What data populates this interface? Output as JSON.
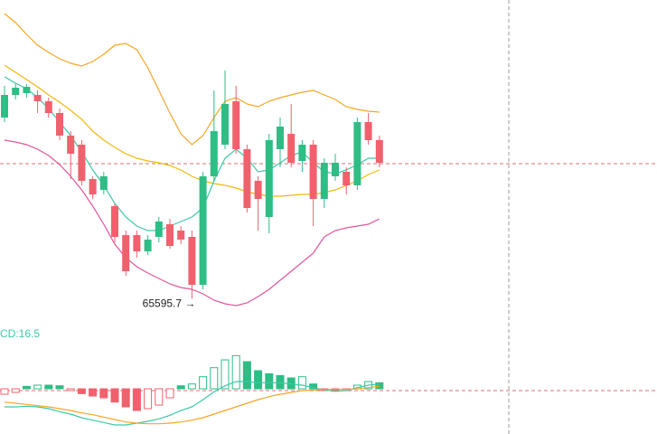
{
  "chart_data": [
    {
      "type": "candlestick",
      "ylim": [
        65400,
        68240
      ],
      "open": [
        67200,
        67400,
        67416,
        67400,
        67344,
        67240,
        67040,
        66960,
        66656,
        66560,
        66416,
        66160,
        66160,
        66016,
        66144,
        66256,
        66200,
        66144,
        65720,
        66680,
        66960,
        67344,
        66920,
        66640,
        66320,
        66920,
        67056,
        66816,
        66960,
        66480,
        66680,
        66720,
        66600,
        67160,
        67000
      ],
      "high": [
        67480,
        67504,
        67496,
        67440,
        67376,
        67280,
        67080,
        67000,
        66680,
        66720,
        66440,
        66200,
        66200,
        66160,
        66320,
        66304,
        66240,
        66200,
        66720,
        67440,
        67616,
        67480,
        66960,
        66680,
        67056,
        67200,
        67320,
        67000,
        67000,
        66840,
        66880,
        66760,
        67200,
        67240,
        67040
      ],
      "low": [
        67160,
        67360,
        67376,
        67240,
        67200,
        67000,
        66656,
        66600,
        66480,
        66520,
        66096,
        65800,
        65960,
        65984,
        66096,
        66040,
        66080,
        65595.7,
        65680,
        66640,
        66920,
        66880,
        66360,
        66200,
        66176,
        66760,
        66760,
        66720,
        66240,
        66400,
        66640,
        66520,
        66560,
        66960,
        66760
      ],
      "close": [
        67400,
        67464,
        67472,
        67344,
        67240,
        67040,
        66880,
        66640,
        66520,
        66680,
        66144,
        65840,
        66016,
        66120,
        66280,
        66064,
        66120,
        65720,
        66680,
        67080,
        67320,
        66920,
        66400,
        66480,
        67000,
        67120,
        66800,
        66960,
        66480,
        66800,
        66800,
        66600,
        67160,
        67000,
        66800
      ],
      "up_color": "#2ebd85",
      "down_color": "#f0616d",
      "annotation": "65595.7 →",
      "lines": [
        {
          "color": "#f5a623",
          "values": [
            68120,
            68040,
            67936,
            67840,
            67776,
            67720,
            67680,
            67656,
            67696,
            67760,
            67840,
            67856,
            67800,
            67640,
            67440,
            67240,
            67056,
            66960,
            67040,
            67200,
            67344,
            67376,
            67320,
            67296,
            67344,
            67376,
            67400,
            67424,
            67440,
            67400,
            67360,
            67296,
            67272,
            67256,
            67248
          ]
        },
        {
          "color": "#f0b90b",
          "values": [
            67664,
            67600,
            67536,
            67472,
            67400,
            67336,
            67264,
            67184,
            67080,
            67000,
            66936,
            66880,
            66840,
            66816,
            66800,
            66776,
            66736,
            66680,
            66640,
            66616,
            66600,
            66576,
            66544,
            66520,
            66504,
            66504,
            66512,
            66520,
            66520,
            66536,
            66560,
            66600,
            66640,
            66696,
            66736
          ]
        },
        {
          "color": "#3cc8a8",
          "values": [
            67560,
            67504,
            67456,
            67376,
            67280,
            67160,
            67040,
            66896,
            66736,
            66600,
            66440,
            66320,
            66240,
            66200,
            66200,
            66240,
            66280,
            66320,
            66400,
            66640,
            66840,
            66920,
            66840,
            66720,
            66736,
            66800,
            66864,
            66896,
            66800,
            66720,
            66704,
            66736,
            66784,
            66840,
            66840
          ]
        },
        {
          "color": "#e0559a",
          "values": [
            67000,
            66984,
            66960,
            66920,
            66864,
            66784,
            66680,
            66560,
            66416,
            66256,
            66080,
            65960,
            65880,
            65824,
            65776,
            65728,
            65696,
            65680,
            65640,
            65584,
            65552,
            65536,
            65560,
            65616,
            65680,
            65760,
            65840,
            65920,
            66000,
            66144,
            66200,
            66224,
            66240,
            66256,
            66304
          ]
        }
      ]
    },
    {
      "type": "macd",
      "title": "CD:16.5",
      "ylim": [
        -75,
        97.5
      ],
      "up_color": "#2ebd85",
      "down_color": "#f0616d",
      "values": [
        -9,
        -6,
        4,
        6,
        6,
        5,
        -3,
        -8,
        -12,
        -15,
        -22,
        -30,
        -36,
        -33,
        -27,
        -15,
        5,
        8,
        20,
        35,
        48,
        55,
        45,
        30,
        25,
        22,
        18,
        20,
        8,
        -3,
        -4,
        -3,
        6,
        12,
        10
      ],
      "lines": [
        {
          "color": "#3cc8a8",
          "values": [
            -30,
            -30,
            -29,
            -30,
            -33,
            -38,
            -42,
            -48,
            -52,
            -56,
            -60,
            -60,
            -57,
            -54,
            -50,
            -44,
            -36,
            -30,
            -18,
            -5,
            5,
            12,
            12,
            10,
            10,
            10,
            8,
            6,
            2,
            -2,
            -4,
            -3,
            2,
            6,
            8
          ]
        },
        {
          "color": "#f5a623",
          "values": [
            -22,
            -24,
            -26,
            -28,
            -30,
            -33,
            -36,
            -40,
            -43,
            -47,
            -51,
            -55,
            -57,
            -58,
            -58,
            -57,
            -55,
            -52,
            -48,
            -42,
            -36,
            -30,
            -24,
            -18,
            -13,
            -9,
            -6,
            -3,
            -2,
            -1,
            -1,
            -1,
            0,
            2,
            4
          ]
        }
      ]
    }
  ]
}
